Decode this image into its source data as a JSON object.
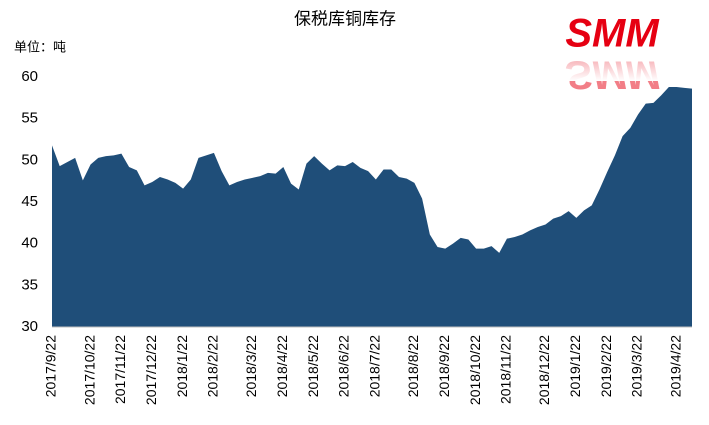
{
  "chart_data": {
    "type": "area",
    "title": "保税库铜库存",
    "unit_label": "单位：吨",
    "logo": "SMM",
    "categories": [
      "2017/9/22",
      null,
      null,
      null,
      null,
      "2017/10/22",
      null,
      null,
      null,
      "2017/11/22",
      null,
      null,
      null,
      "2017/12/22",
      null,
      null,
      null,
      "2018/1/22",
      null,
      null,
      null,
      "2018/2/22",
      null,
      null,
      null,
      null,
      "2018/3/22",
      null,
      null,
      null,
      "2018/4/22",
      null,
      null,
      null,
      "2018/5/22",
      null,
      null,
      null,
      "2018/6/22",
      null,
      null,
      null,
      "2018/7/22",
      null,
      null,
      null,
      null,
      "2018/8/22",
      null,
      null,
      null,
      "2018/9/22",
      null,
      null,
      null,
      "2018/10/22",
      null,
      null,
      null,
      "2018/11/22",
      null,
      null,
      null,
      null,
      "2018/12/22",
      null,
      null,
      null,
      "2019/1/22",
      null,
      null,
      null,
      "2019/2/22",
      null,
      null,
      null,
      "2019/3/22",
      null,
      null,
      null,
      null,
      "2019/4/22",
      null,
      null
    ],
    "values": [
      51.8,
      49.3,
      49.8,
      50.3,
      47.6,
      49.5,
      50.3,
      50.5,
      50.6,
      50.8,
      49.2,
      48.8,
      47.0,
      47.4,
      48.0,
      47.7,
      47.3,
      46.6,
      47.7,
      50.3,
      50.6,
      50.9,
      48.7,
      47.0,
      47.4,
      47.7,
      47.9,
      48.1,
      48.5,
      48.4,
      49.2,
      47.2,
      46.5,
      49.6,
      50.5,
      49.6,
      48.8,
      49.4,
      49.3,
      49.8,
      49.1,
      48.7,
      47.7,
      48.9,
      48.9,
      48.0,
      47.8,
      47.3,
      45.4,
      41.1,
      39.6,
      39.4,
      40.0,
      40.7,
      40.5,
      39.4,
      39.4,
      39.7,
      38.9,
      40.6,
      40.8,
      41.1,
      41.6,
      42.0,
      42.3,
      43.0,
      43.3,
      43.9,
      43.1,
      44.0,
      44.6,
      46.5,
      48.6,
      50.6,
      52.9,
      53.9,
      55.5,
      56.8,
      56.9,
      57.8,
      58.8,
      58.8,
      58.7,
      58.6
    ],
    "color": "#1f4e79",
    "logo_color": "#e60012",
    "ylim": [
      30,
      60
    ],
    "yticks": [
      30,
      35,
      40,
      45,
      50,
      55,
      60
    ],
    "grid": false
  }
}
